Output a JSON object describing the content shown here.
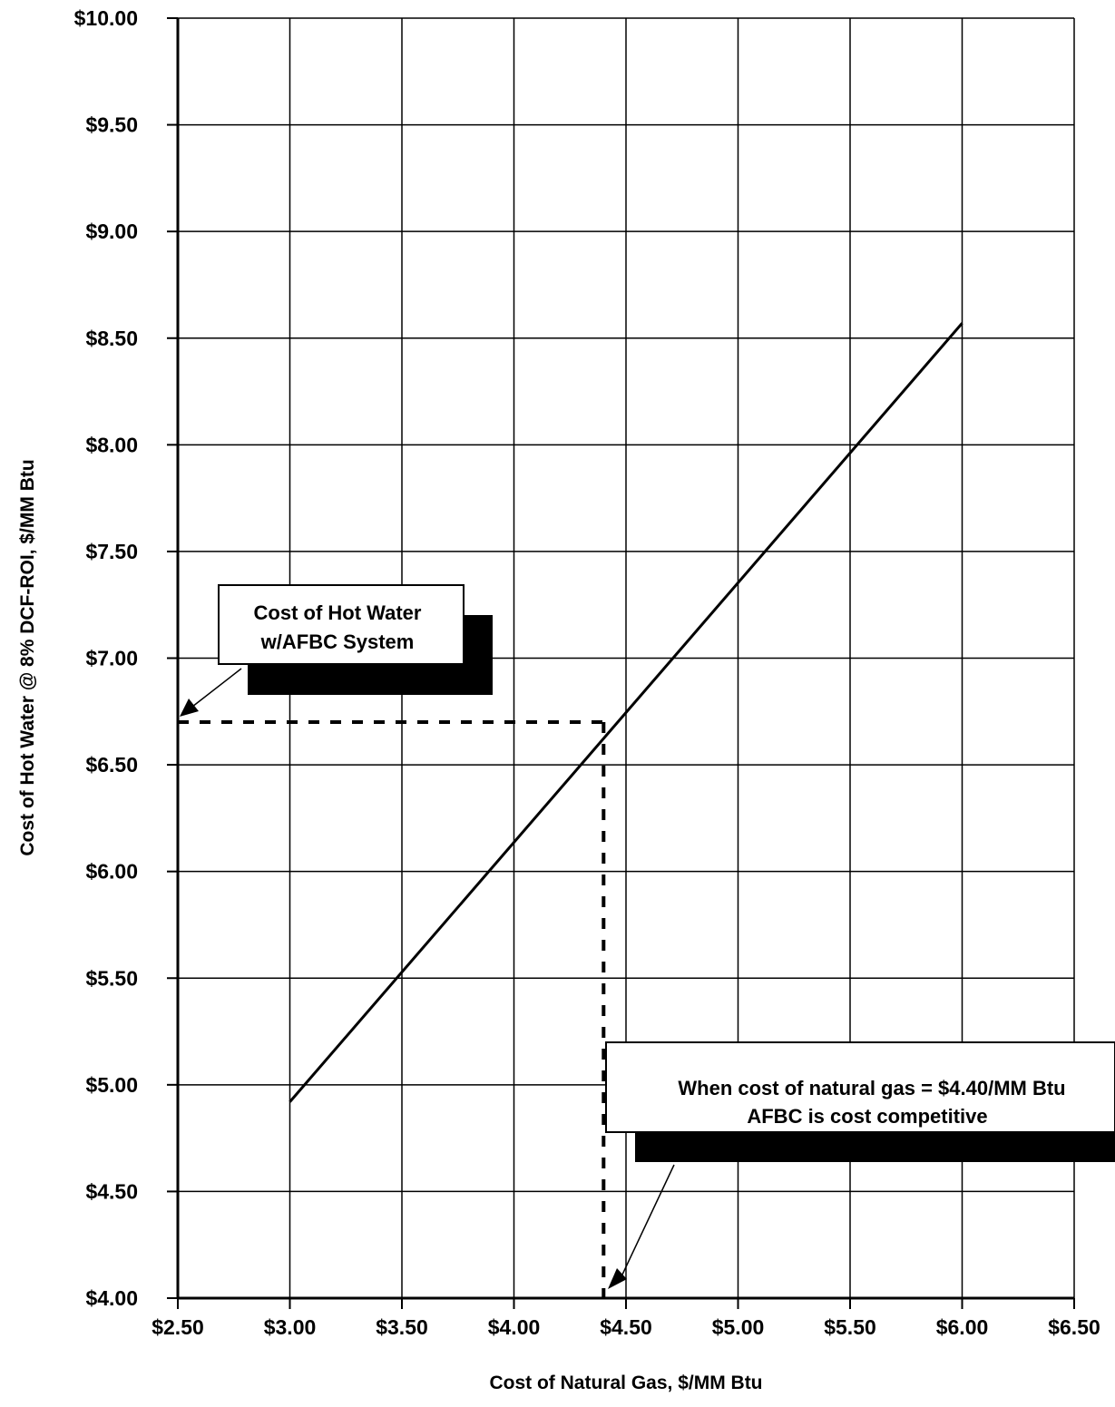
{
  "chart_data": {
    "type": "line",
    "xlabel": "Cost of Natural Gas, $/MM Btu",
    "ylabel": "Cost of Hot Water @ 8% DCF-ROI, $/MM Btu",
    "xlim": [
      2.5,
      6.5
    ],
    "ylim": [
      4.0,
      10.0
    ],
    "grid": true,
    "x_ticks": [
      "$2.50",
      "$3.00",
      "$3.50",
      "$4.00",
      "$4.50",
      "$5.00",
      "$5.50",
      "$6.00",
      "$6.50"
    ],
    "y_ticks": [
      "$10.00",
      "$9.50",
      "$9.00",
      "$8.50",
      "$8.00",
      "$7.50",
      "$7.00",
      "$6.50",
      "$6.00",
      "$5.50",
      "$5.00",
      "$4.50",
      "$4.00"
    ],
    "series": [
      {
        "x": [
          3.0,
          6.0
        ],
        "y": [
          4.92,
          8.57
        ]
      }
    ],
    "reference_point": {
      "x": 4.4,
      "y": 6.7
    },
    "annotations": [
      {
        "lines": [
          "Cost of Hot Water",
          "w/AFBC System"
        ]
      },
      {
        "lines": [
          "When cost of natural gas  = $4.40/MM Btu",
          "AFBC is cost competitive"
        ]
      }
    ]
  }
}
